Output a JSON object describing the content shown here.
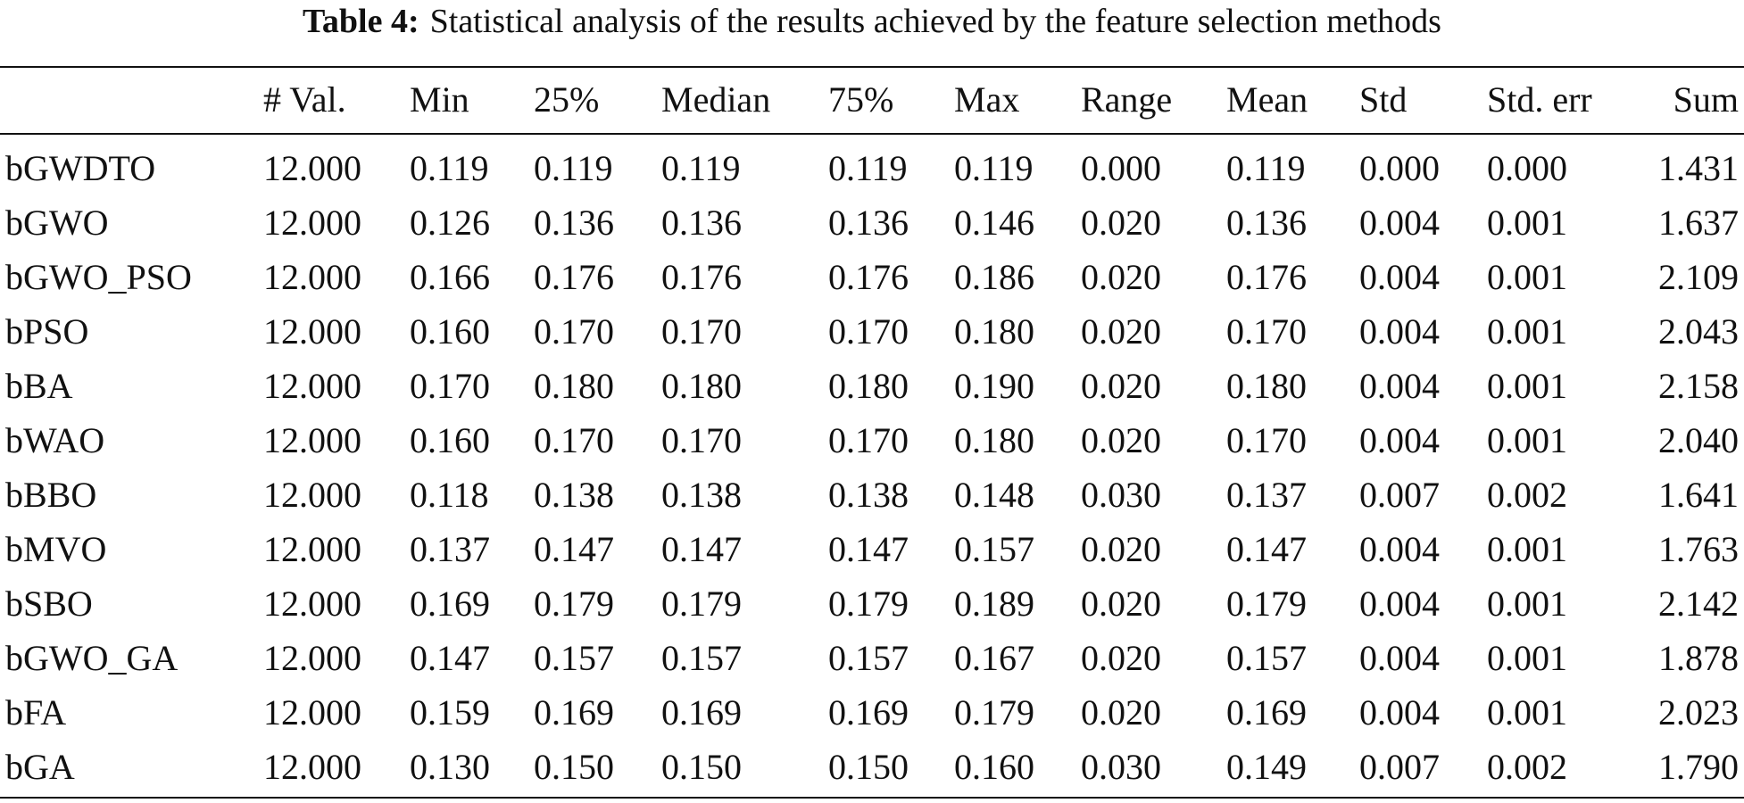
{
  "caption": {
    "label": "Table 4:",
    "text": "Statistical analysis of the results achieved by the feature selection methods"
  },
  "table": {
    "header": [
      "# Val.",
      "Min",
      "25%",
      "Median",
      "75%",
      "Max",
      "Range",
      "Mean",
      "Std",
      "Std. err",
      "Sum"
    ],
    "rows": [
      [
        "bGWDTO",
        "12.000",
        "0.119",
        "0.119",
        "0.119",
        "0.119",
        "0.119",
        "0.000",
        "0.119",
        "0.000",
        "0.000",
        "1.431"
      ],
      [
        "bGWO",
        "12.000",
        "0.126",
        "0.136",
        "0.136",
        "0.136",
        "0.146",
        "0.020",
        "0.136",
        "0.004",
        "0.001",
        "1.637"
      ],
      [
        "bGWO_PSO",
        "12.000",
        "0.166",
        "0.176",
        "0.176",
        "0.176",
        "0.186",
        "0.020",
        "0.176",
        "0.004",
        "0.001",
        "2.109"
      ],
      [
        "bPSO",
        "12.000",
        "0.160",
        "0.170",
        "0.170",
        "0.170",
        "0.180",
        "0.020",
        "0.170",
        "0.004",
        "0.001",
        "2.043"
      ],
      [
        "bBA",
        "12.000",
        "0.170",
        "0.180",
        "0.180",
        "0.180",
        "0.190",
        "0.020",
        "0.180",
        "0.004",
        "0.001",
        "2.158"
      ],
      [
        "bWAO",
        "12.000",
        "0.160",
        "0.170",
        "0.170",
        "0.170",
        "0.180",
        "0.020",
        "0.170",
        "0.004",
        "0.001",
        "2.040"
      ],
      [
        "bBBO",
        "12.000",
        "0.118",
        "0.138",
        "0.138",
        "0.138",
        "0.148",
        "0.030",
        "0.137",
        "0.007",
        "0.002",
        "1.641"
      ],
      [
        "bMVO",
        "12.000",
        "0.137",
        "0.147",
        "0.147",
        "0.147",
        "0.157",
        "0.020",
        "0.147",
        "0.004",
        "0.001",
        "1.763"
      ],
      [
        "bSBO",
        "12.000",
        "0.169",
        "0.179",
        "0.179",
        "0.179",
        "0.189",
        "0.020",
        "0.179",
        "0.004",
        "0.001",
        "2.142"
      ],
      [
        "bGWO_GA",
        "12.000",
        "0.147",
        "0.157",
        "0.157",
        "0.157",
        "0.167",
        "0.020",
        "0.157",
        "0.004",
        "0.001",
        "1.878"
      ],
      [
        "bFA",
        "12.000",
        "0.159",
        "0.169",
        "0.169",
        "0.169",
        "0.179",
        "0.020",
        "0.169",
        "0.004",
        "0.001",
        "2.023"
      ],
      [
        "bGA",
        "12.000",
        "0.130",
        "0.150",
        "0.150",
        "0.150",
        "0.160",
        "0.030",
        "0.149",
        "0.007",
        "0.002",
        "1.790"
      ]
    ]
  }
}
